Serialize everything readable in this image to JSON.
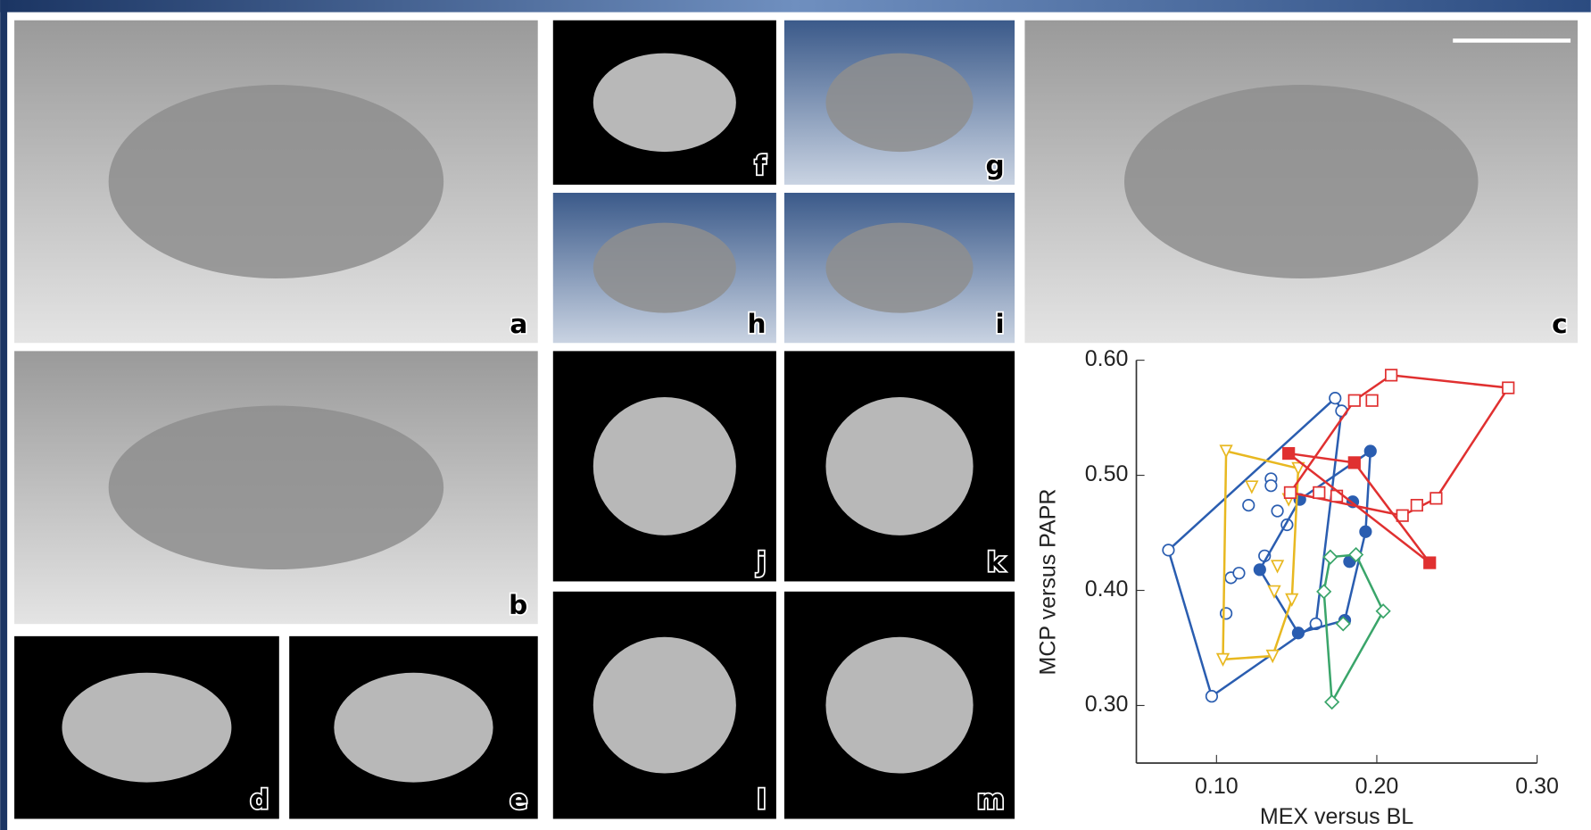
{
  "panels": [
    {
      "label": "a"
    },
    {
      "label": "b"
    },
    {
      "label": "c"
    },
    {
      "label": "d"
    },
    {
      "label": "e"
    },
    {
      "label": "f"
    },
    {
      "label": "g"
    },
    {
      "label": "h"
    },
    {
      "label": "i"
    },
    {
      "label": "j"
    },
    {
      "label": "k"
    },
    {
      "label": "l"
    },
    {
      "label": "m"
    }
  ],
  "chart_data": {
    "type": "scatter",
    "x_label": "MEX versus BL",
    "y_label": "MCP versus PAPR",
    "xlim": [
      0.05,
      0.3
    ],
    "ylim": [
      0.25,
      0.6
    ],
    "xticks": [
      {
        "value": 0.1,
        "label": "0.10"
      },
      {
        "value": 0.2,
        "label": "0.20"
      },
      {
        "value": 0.3,
        "label": "0.30"
      }
    ],
    "yticks": [
      {
        "value": 0.3,
        "label": "0.30"
      },
      {
        "value": 0.4,
        "label": "0.40"
      },
      {
        "value": 0.5,
        "label": "0.50"
      },
      {
        "value": 0.6,
        "label": "0.60"
      }
    ],
    "series": [
      {
        "color": "#2a5db0",
        "marker": "circle",
        "filled": false,
        "x": [
          0.07,
          0.097,
          0.174,
          0.178,
          0.106,
          0.109,
          0.114,
          0.12,
          0.134,
          0.134,
          0.138,
          0.162,
          0.13,
          0.144
        ],
        "values": [
          0.435,
          0.308,
          0.567,
          0.556,
          0.38,
          0.411,
          0.415,
          0.474,
          0.497,
          0.491,
          0.469,
          0.371,
          0.43,
          0.457
        ]
      },
      {
        "color": "#2a5db0",
        "marker": "circle",
        "filled": true,
        "x": [
          0.127,
          0.152,
          0.151,
          0.18,
          0.185,
          0.196,
          0.193,
          0.183
        ],
        "values": [
          0.418,
          0.479,
          0.363,
          0.374,
          0.477,
          0.521,
          0.451,
          0.425
        ]
      },
      {
        "color": "#e8b820",
        "marker": "triangle",
        "filled": false,
        "x": [
          0.106,
          0.104,
          0.135,
          0.151,
          0.122,
          0.145,
          0.138,
          0.147,
          0.136
        ],
        "values": [
          0.521,
          0.34,
          0.343,
          0.506,
          0.49,
          0.479,
          0.421,
          0.392,
          0.399
        ]
      },
      {
        "color": "#3aa56a",
        "marker": "diamond",
        "filled": false,
        "x": [
          0.172,
          0.171,
          0.187,
          0.204,
          0.179,
          0.167
        ],
        "values": [
          0.303,
          0.429,
          0.431,
          0.382,
          0.371,
          0.399
        ]
      },
      {
        "color": "#e03030",
        "marker": "square",
        "filled": false,
        "x": [
          0.209,
          0.282,
          0.237,
          0.225,
          0.216,
          0.164,
          0.175,
          0.186,
          0.197,
          0.146
        ],
        "values": [
          0.587,
          0.576,
          0.48,
          0.474,
          0.465,
          0.485,
          0.482,
          0.565,
          0.565,
          0.485
        ]
      },
      {
        "color": "#e03030",
        "marker": "square",
        "filled": true,
        "x": [
          0.145,
          0.186,
          0.233
        ],
        "values": [
          0.519,
          0.511,
          0.424
        ]
      }
    ]
  }
}
